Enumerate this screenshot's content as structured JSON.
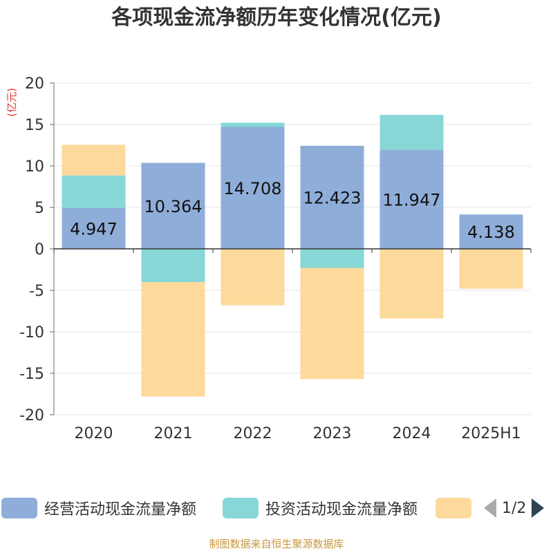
{
  "chart_data": {
    "type": "bar",
    "stacked": true,
    "title": "各项现金流净额历年变化情况(亿元)",
    "ylabel": "(亿元)",
    "ylim": [
      -20,
      20
    ],
    "yticks": [
      20,
      15,
      10,
      5,
      0,
      -5,
      -10,
      -15,
      -20
    ],
    "grid": true,
    "legend_position": "bottom",
    "categories": [
      "2020",
      "2021",
      "2022",
      "2023",
      "2024",
      "2025H1"
    ],
    "series": [
      {
        "name": "经营活动现金流量净额",
        "color": "#8eadd9",
        "values": [
          4.947,
          10.364,
          14.708,
          12.423,
          11.947,
          4.138
        ],
        "labels": [
          "4.947",
          "10.364",
          "14.708",
          "12.423",
          "11.947",
          "4.138"
        ]
      },
      {
        "name": "投资活动现金流量净额",
        "color": "#87d7d7",
        "values": [
          3.9,
          -4.0,
          0.5,
          -2.3,
          4.2,
          0
        ]
      },
      {
        "name": "",
        "color": "#fdd99b",
        "values": [
          3.7,
          -13.8,
          -6.8,
          -13.4,
          -8.4,
          -4.8
        ]
      }
    ]
  },
  "legend": {
    "pager": "1/2"
  },
  "source": "制图数据来自恒生聚源数据库"
}
